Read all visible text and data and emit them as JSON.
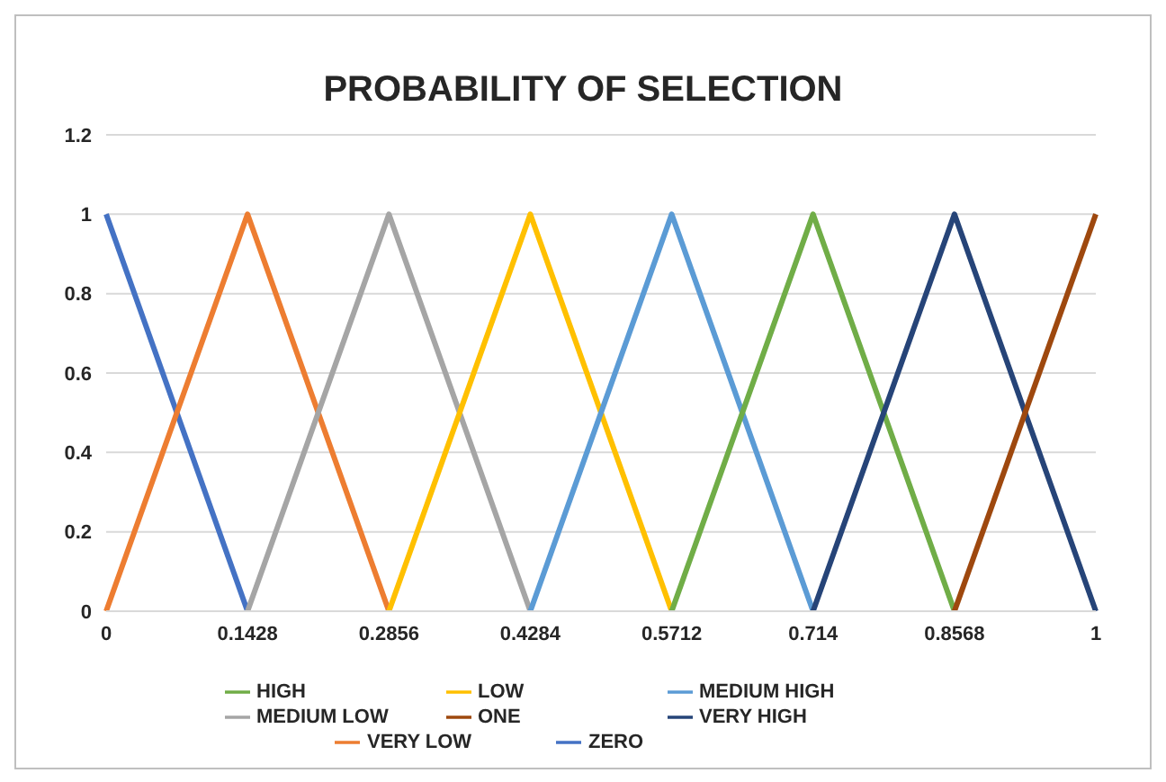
{
  "chart_data": {
    "type": "line",
    "title": "PROBABILITY OF SELECTION",
    "categories": [
      "0",
      "0.1428",
      "0.2856",
      "0.4284",
      "0.5712",
      "0.714",
      "0.8568",
      "1"
    ],
    "series": [
      {
        "name": "ZERO",
        "color": "#4472c4",
        "values": [
          1,
          0,
          null,
          null,
          null,
          null,
          null,
          null
        ]
      },
      {
        "name": "VERY LOW",
        "color": "#ed7d31",
        "values": [
          0,
          1,
          0,
          null,
          null,
          null,
          null,
          null
        ]
      },
      {
        "name": "MEDIUM LOW",
        "color": "#a5a5a5",
        "values": [
          null,
          0,
          1,
          0,
          null,
          null,
          null,
          null
        ]
      },
      {
        "name": "LOW",
        "color": "#ffc000",
        "values": [
          null,
          null,
          0,
          1,
          0,
          null,
          null,
          null
        ]
      },
      {
        "name": "MEDIUM HIGH",
        "color": "#5b9bd5",
        "values": [
          null,
          null,
          null,
          0,
          1,
          0,
          null,
          null
        ]
      },
      {
        "name": "HIGH",
        "color": "#70ad47",
        "values": [
          null,
          null,
          null,
          null,
          0,
          1,
          0,
          null
        ]
      },
      {
        "name": "VERY HIGH",
        "color": "#264478",
        "values": [
          null,
          null,
          null,
          null,
          null,
          0,
          1,
          0
        ]
      },
      {
        "name": "ONE",
        "color": "#9e480e",
        "values": [
          null,
          null,
          null,
          null,
          null,
          null,
          0,
          1
        ]
      }
    ],
    "ylim": [
      0,
      1.2
    ],
    "yticks": [
      0,
      0.2,
      0.4,
      0.6,
      0.8,
      1,
      1.2
    ],
    "grid": "y",
    "legend": "bottom",
    "marker": "none",
    "line_style": "solid"
  }
}
